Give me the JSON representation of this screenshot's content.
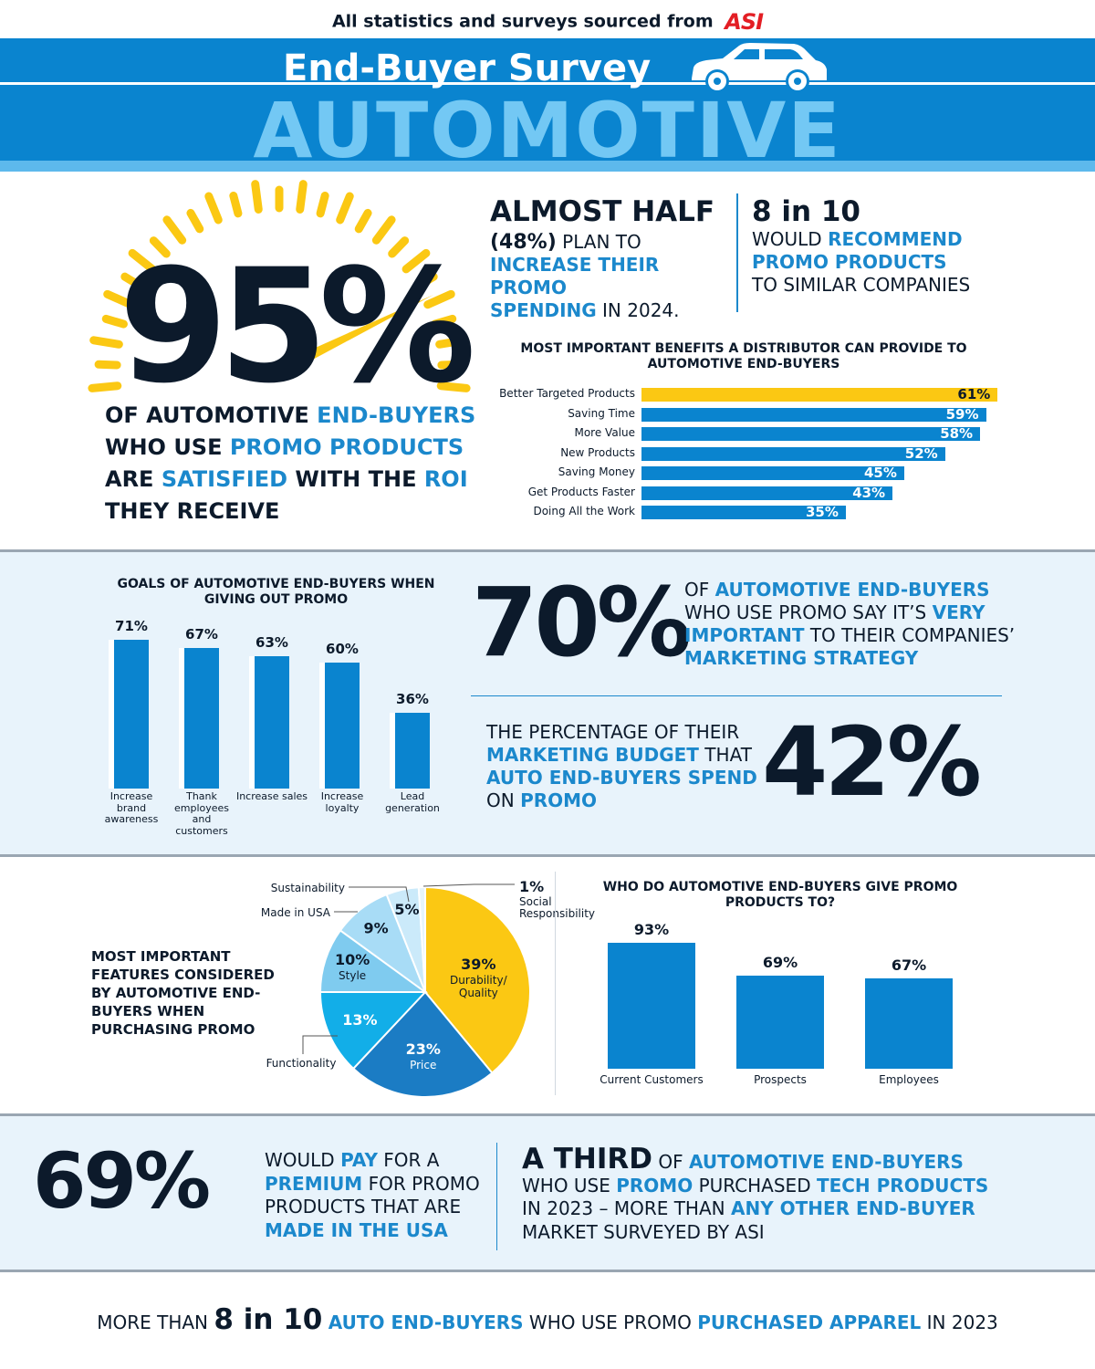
{
  "header": {
    "source_text": "All statistics and surveys sourced from",
    "source_logo": "ASI",
    "subtitle": "End-Buyer Survey",
    "title": "AUTOMOTIVE",
    "car_icon": "car-icon"
  },
  "satisfaction": {
    "big_number": "95%",
    "line1_a": "OF AUTOMOTIVE ",
    "line1_b": "END-BUYERS",
    "line2_a": "WHO USE ",
    "line2_b": "PROMO PRODUCTS",
    "line3_a": "ARE ",
    "line3_b": "SATISFIED",
    "line3_c": " WITH THE ",
    "line3_d": "ROI",
    "line4": "THEY RECEIVE",
    "gauge_icon": "speedometer-icon",
    "gauge_colors": {
      "ticks": "#fbc813",
      "needle": "#fbc813"
    }
  },
  "spending": {
    "title": "ALMOST HALF",
    "pct": "(48%)",
    "t1": " PLAN TO",
    "t2": "INCREASE THEIR PROMO",
    "t3": "SPENDING",
    "t4": " IN 2024."
  },
  "recommend": {
    "title": "8 in 10",
    "t1": "WOULD ",
    "t2": "RECOMMEND",
    "t3": "PROMO PRODUCTS",
    "t4": "TO SIMILAR COMPANIES"
  },
  "colors": {
    "accent": "#1b88cc",
    "bar": "#0a84cf",
    "highlight": "#fbc813",
    "navy": "#0c1a2b",
    "light_panel": "#e8f3fb"
  },
  "chart_data": [
    {
      "type": "bar",
      "orientation": "horizontal",
      "title": "MOST IMPORTANT BENEFITS A DISTRIBUTOR CAN PROVIDE TO AUTOMOTIVE END-BUYERS",
      "categories": [
        "Better Targeted Products",
        "Saving Time",
        "More Value",
        "New Products",
        "Saving Money",
        "Get Products Faster",
        "Doing All the Work"
      ],
      "values": [
        61,
        59,
        58,
        52,
        45,
        43,
        35
      ],
      "labels": [
        "61%",
        "59%",
        "58%",
        "52%",
        "45%",
        "43%",
        "35%"
      ],
      "highlight_index": 0,
      "unit": "%"
    },
    {
      "type": "bar",
      "orientation": "vertical",
      "title": "GOALS OF AUTOMOTIVE END-BUYERS WHEN GIVING OUT PROMO",
      "categories": [
        "Increase brand awareness",
        "Thank employees and customers",
        "Increase sales",
        "Increase loyalty",
        "Lead generation"
      ],
      "values": [
        71,
        67,
        63,
        60,
        36
      ],
      "labels": [
        "71%",
        "67%",
        "63%",
        "60%",
        "36%"
      ],
      "unit": "%"
    },
    {
      "type": "pie",
      "title": "MOST IMPORTANT FEATURES CONSIDERED BY AUTOMOTIVE END-BUYERS WHEN PURCHASING PROMO",
      "slices": [
        {
          "label": "Durability/ Quality",
          "value": 39,
          "text": "39%",
          "color": "#fbc813"
        },
        {
          "label": "Price",
          "value": 23,
          "text": "23%",
          "color": "#1b7cc4"
        },
        {
          "label": "Functionality",
          "value": 13,
          "text": "13%",
          "color": "#12aee8"
        },
        {
          "label": "Style",
          "value": 10,
          "text": "10%",
          "color": "#7fcbef"
        },
        {
          "label": "Made in USA",
          "value": 9,
          "text": "9%",
          "color": "#a8dcf6"
        },
        {
          "label": "Sustainability",
          "value": 5,
          "text": "5%",
          "color": "#cbeafa"
        },
        {
          "label": "Social Responsibility",
          "value": 1,
          "text": "1%",
          "color": "#e7f5fc"
        }
      ]
    },
    {
      "type": "bar",
      "orientation": "vertical",
      "title": "WHO DO AUTOMOTIVE END-BUYERS GIVE PROMO PRODUCTS TO?",
      "categories": [
        "Current Customers",
        "Prospects",
        "Employees"
      ],
      "values": [
        93,
        69,
        67
      ],
      "labels": [
        "93%",
        "69%",
        "67%"
      ],
      "unit": "%"
    }
  ],
  "strategy": {
    "big_number": "70%",
    "t1": "OF ",
    "t2": "AUTOMOTIVE END-BUYERS",
    "t3": "WHO USE PROMO SAY IT’S ",
    "t4": "VERY",
    "t5": "IMPORTANT",
    "t6": " TO THEIR COMPANIES’",
    "t7": "MARKETING STRATEGY"
  },
  "budget": {
    "big_number": "42%",
    "t1": "THE PERCENTAGE OF THEIR",
    "t2": "MARKETING BUDGET",
    "t3": " THAT",
    "t4": "AUTO END-BUYERS SPEND",
    "t5": "ON ",
    "t6": "PROMO"
  },
  "premium": {
    "big_number": "69%",
    "t1": "WOULD ",
    "t2": "PAY",
    "t3": " FOR A",
    "t4": "PREMIUM",
    "t5": " FOR PROMO",
    "t6": "PRODUCTS THAT ARE",
    "t7": "MADE IN THE USA"
  },
  "tech": {
    "big": "A THIRD",
    "t1": " OF ",
    "t2": "AUTOMOTIVE END-BUYERS",
    "t3": "WHO USE ",
    "t4": "PROMO",
    "t5": " PURCHASED ",
    "t6": "TECH PRODUCTS",
    "t7": "IN 2023 – MORE THAN ",
    "t8": "ANY OTHER END-BUYER",
    "t9": "MARKET SURVEYED BY ASI"
  },
  "apparel": {
    "t1": "MORE THAN ",
    "big": "8 in 10",
    "t2": " ",
    "t3": "AUTO END-BUYERS",
    "t4": " WHO USE PROMO ",
    "t5": "PURCHASED APPAREL",
    "t6": " IN 2023"
  }
}
